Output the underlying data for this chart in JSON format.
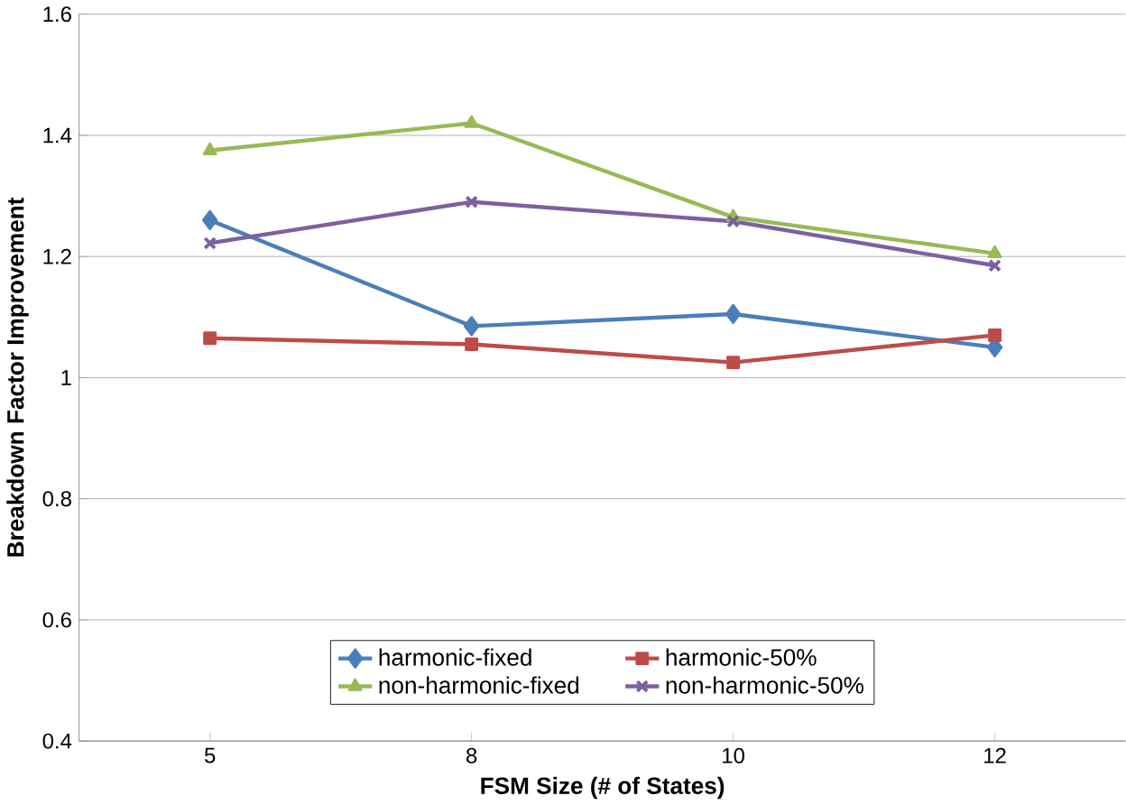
{
  "chart_data": {
    "type": "line",
    "xlabel": "FSM Size (# of States)",
    "ylabel": "Breakdown Factor Improvement",
    "categories": [
      "5",
      "8",
      "10",
      "12"
    ],
    "series": [
      {
        "name": "harmonic-fixed",
        "color": "#4a7ebb",
        "marker": "diamond",
        "values": [
          1.26,
          1.085,
          1.105,
          1.05
        ]
      },
      {
        "name": "harmonic-50%",
        "color": "#be4b48",
        "marker": "square",
        "values": [
          1.065,
          1.055,
          1.025,
          1.07
        ]
      },
      {
        "name": "non-harmonic-fixed",
        "color": "#98b954",
        "marker": "triangle",
        "values": [
          1.375,
          1.42,
          1.265,
          1.205
        ]
      },
      {
        "name": "non-harmonic-50%",
        "color": "#7d60a0",
        "marker": "cross",
        "values": [
          1.222,
          1.29,
          1.258,
          1.185
        ]
      }
    ],
    "ylim": [
      0.4,
      1.6
    ],
    "yticks": [
      0.4,
      0.6,
      0.8,
      1,
      1.2,
      1.4,
      1.6
    ],
    "grid": "y",
    "legend": "bottom",
    "line_style": "solid"
  }
}
